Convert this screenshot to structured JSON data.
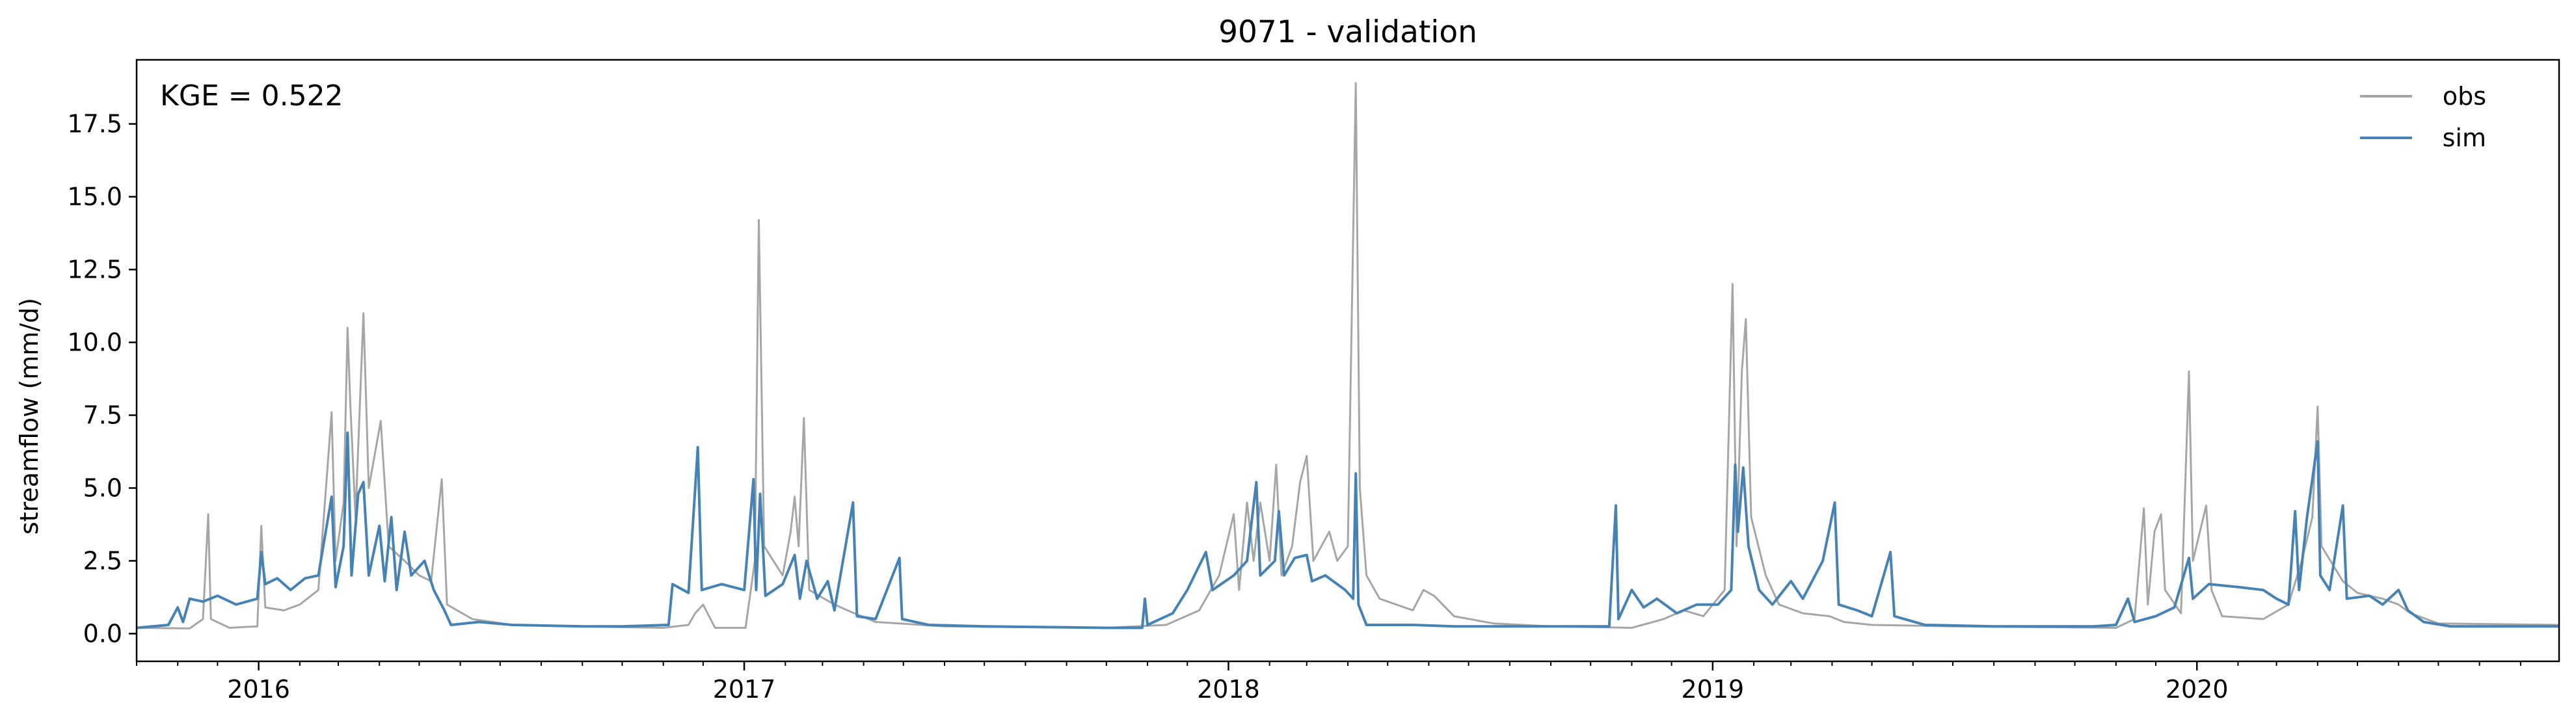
{
  "chart_data": {
    "type": "line",
    "title": "9071 - validation",
    "xlabel": "",
    "ylabel": "streamflow (mm/d)",
    "annotation": "KGE = 0.522",
    "xlim": [
      "2015-10-01",
      "2020-09-30"
    ],
    "ylim": [
      -0.95,
      19.7
    ],
    "yticks": [
      0.0,
      2.5,
      5.0,
      7.5,
      10.0,
      12.5,
      15.0,
      17.5
    ],
    "ytick_labels": [
      "0.0",
      "2.5",
      "5.0",
      "7.5",
      "10.0",
      "12.5",
      "15.0",
      "17.5"
    ],
    "xticks": [
      "2016-01-01",
      "2017-01-01",
      "2018-01-01",
      "2019-01-01",
      "2020-01-01"
    ],
    "xtick_labels": [
      "2016",
      "2017",
      "2018",
      "2019",
      "2020"
    ],
    "grid": false,
    "legend_position": "top-right",
    "series": [
      {
        "name": "obs",
        "color": "#a6a6a6",
        "points": [
          [
            "2015-10-01",
            0.2
          ],
          [
            "2015-11-10",
            0.18
          ],
          [
            "2015-11-20",
            0.5
          ],
          [
            "2015-11-24",
            4.1
          ],
          [
            "2015-11-26",
            0.5
          ],
          [
            "2015-12-10",
            0.2
          ],
          [
            "2015-12-31",
            0.25
          ],
          [
            "2016-01-03",
            3.7
          ],
          [
            "2016-01-06",
            0.9
          ],
          [
            "2016-01-20",
            0.8
          ],
          [
            "2016-02-01",
            1.0
          ],
          [
            "2016-02-15",
            1.5
          ],
          [
            "2016-02-25",
            7.6
          ],
          [
            "2016-02-28",
            2.5
          ],
          [
            "2016-03-05",
            4.5
          ],
          [
            "2016-03-08",
            10.5
          ],
          [
            "2016-03-10",
            8.0
          ],
          [
            "2016-03-14",
            4.0
          ],
          [
            "2016-03-20",
            11.0
          ],
          [
            "2016-03-24",
            5.0
          ],
          [
            "2016-04-02",
            7.3
          ],
          [
            "2016-04-08",
            3.0
          ],
          [
            "2016-04-20",
            2.5
          ],
          [
            "2016-05-01",
            2.0
          ],
          [
            "2016-05-10",
            1.8
          ],
          [
            "2016-05-18",
            5.3
          ],
          [
            "2016-05-22",
            1.0
          ],
          [
            "2016-06-10",
            0.5
          ],
          [
            "2016-07-10",
            0.3
          ],
          [
            "2016-09-01",
            0.25
          ],
          [
            "2016-11-01",
            0.2
          ],
          [
            "2016-11-20",
            0.3
          ],
          [
            "2016-11-25",
            0.7
          ],
          [
            "2016-12-01",
            1.0
          ],
          [
            "2016-12-10",
            0.2
          ],
          [
            "2017-01-02",
            0.2
          ],
          [
            "2017-01-09",
            2.5
          ],
          [
            "2017-01-12",
            14.2
          ],
          [
            "2017-01-16",
            3.0
          ],
          [
            "2017-01-30",
            2.0
          ],
          [
            "2017-02-05",
            3.5
          ],
          [
            "2017-02-08",
            4.7
          ],
          [
            "2017-02-11",
            3.0
          ],
          [
            "2017-02-15",
            7.4
          ],
          [
            "2017-02-19",
            1.5
          ],
          [
            "2017-03-10",
            1.0
          ],
          [
            "2017-03-25",
            0.7
          ],
          [
            "2017-04-10",
            0.4
          ],
          [
            "2017-06-01",
            0.25
          ],
          [
            "2017-10-01",
            0.2
          ],
          [
            "2017-11-15",
            0.3
          ],
          [
            "2017-12-10",
            0.8
          ],
          [
            "2017-12-25",
            2.0
          ],
          [
            "2018-01-05",
            4.1
          ],
          [
            "2018-01-09",
            1.5
          ],
          [
            "2018-01-15",
            4.5
          ],
          [
            "2018-01-20",
            2.5
          ],
          [
            "2018-01-25",
            4.5
          ],
          [
            "2018-02-01",
            2.5
          ],
          [
            "2018-02-06",
            5.8
          ],
          [
            "2018-02-10",
            2.0
          ],
          [
            "2018-02-18",
            3.0
          ],
          [
            "2018-02-24",
            5.2
          ],
          [
            "2018-03-01",
            6.1
          ],
          [
            "2018-03-06",
            2.5
          ],
          [
            "2018-03-18",
            3.5
          ],
          [
            "2018-03-24",
            2.5
          ],
          [
            "2018-04-01",
            3.0
          ],
          [
            "2018-04-07",
            18.9
          ],
          [
            "2018-04-10",
            5.0
          ],
          [
            "2018-04-15",
            2.0
          ],
          [
            "2018-04-25",
            1.2
          ],
          [
            "2018-05-20",
            0.8
          ],
          [
            "2018-05-28",
            1.5
          ],
          [
            "2018-06-05",
            1.3
          ],
          [
            "2018-06-20",
            0.6
          ],
          [
            "2018-07-20",
            0.35
          ],
          [
            "2018-09-01",
            0.25
          ],
          [
            "2018-11-01",
            0.2
          ],
          [
            "2018-11-25",
            0.5
          ],
          [
            "2018-12-10",
            0.8
          ],
          [
            "2018-12-25",
            0.6
          ],
          [
            "2019-01-10",
            1.5
          ],
          [
            "2019-01-16",
            12.0
          ],
          [
            "2019-01-19",
            3.0
          ],
          [
            "2019-01-23",
            9.0
          ],
          [
            "2019-01-26",
            10.8
          ],
          [
            "2019-01-30",
            4.0
          ],
          [
            "2019-02-10",
            2.0
          ],
          [
            "2019-02-20",
            1.0
          ],
          [
            "2019-03-10",
            0.7
          ],
          [
            "2019-03-30",
            0.6
          ],
          [
            "2019-04-10",
            0.4
          ],
          [
            "2019-05-01",
            0.3
          ],
          [
            "2019-07-01",
            0.25
          ],
          [
            "2019-11-01",
            0.2
          ],
          [
            "2019-11-15",
            0.5
          ],
          [
            "2019-11-22",
            4.3
          ],
          [
            "2019-11-25",
            1.0
          ],
          [
            "2019-11-30",
            3.5
          ],
          [
            "2019-12-05",
            4.1
          ],
          [
            "2019-12-08",
            1.5
          ],
          [
            "2019-12-20",
            0.7
          ],
          [
            "2019-12-26",
            9.0
          ],
          [
            "2019-12-29",
            2.5
          ],
          [
            "2020-01-08",
            4.4
          ],
          [
            "2020-01-12",
            1.5
          ],
          [
            "2020-01-20",
            0.6
          ],
          [
            "2020-02-20",
            0.5
          ],
          [
            "2020-03-10",
            1.0
          ],
          [
            "2020-03-20",
            2.5
          ],
          [
            "2020-03-28",
            4.0
          ],
          [
            "2020-04-01",
            7.8
          ],
          [
            "2020-04-04",
            3.0
          ],
          [
            "2020-04-20",
            1.8
          ],
          [
            "2020-05-01",
            1.4
          ],
          [
            "2020-05-20",
            1.2
          ],
          [
            "2020-06-01",
            1.0
          ],
          [
            "2020-06-10",
            0.7
          ],
          [
            "2020-07-01",
            0.35
          ],
          [
            "2020-09-30",
            0.3
          ]
        ]
      },
      {
        "name": "sim",
        "color": "#4682b4",
        "points": [
          [
            "2015-10-01",
            0.2
          ],
          [
            "2015-10-25",
            0.3
          ],
          [
            "2015-11-01",
            0.9
          ],
          [
            "2015-11-05",
            0.4
          ],
          [
            "2015-11-10",
            1.2
          ],
          [
            "2015-11-20",
            1.1
          ],
          [
            "2015-12-01",
            1.3
          ],
          [
            "2015-12-15",
            1.0
          ],
          [
            "2015-12-31",
            1.2
          ],
          [
            "2016-01-03",
            2.8
          ],
          [
            "2016-01-06",
            1.7
          ],
          [
            "2016-01-15",
            1.9
          ],
          [
            "2016-01-25",
            1.5
          ],
          [
            "2016-02-05",
            1.9
          ],
          [
            "2016-02-15",
            2.0
          ],
          [
            "2016-02-25",
            4.7
          ],
          [
            "2016-02-28",
            1.6
          ],
          [
            "2016-03-05",
            3.0
          ],
          [
            "2016-03-08",
            6.9
          ],
          [
            "2016-03-11",
            2.0
          ],
          [
            "2016-03-16",
            4.8
          ],
          [
            "2016-03-20",
            5.2
          ],
          [
            "2016-03-24",
            2.0
          ],
          [
            "2016-04-01",
            3.7
          ],
          [
            "2016-04-05",
            1.8
          ],
          [
            "2016-04-10",
            4.0
          ],
          [
            "2016-04-14",
            1.5
          ],
          [
            "2016-04-20",
            3.5
          ],
          [
            "2016-04-25",
            2.0
          ],
          [
            "2016-05-05",
            2.5
          ],
          [
            "2016-05-12",
            1.5
          ],
          [
            "2016-05-20",
            0.8
          ],
          [
            "2016-05-25",
            0.3
          ],
          [
            "2016-06-15",
            0.4
          ],
          [
            "2016-07-10",
            0.3
          ],
          [
            "2016-09-01",
            0.25
          ],
          [
            "2016-10-01",
            0.25
          ],
          [
            "2016-11-05",
            0.3
          ],
          [
            "2016-11-08",
            1.7
          ],
          [
            "2016-11-20",
            1.4
          ],
          [
            "2016-11-27",
            6.4
          ],
          [
            "2016-11-30",
            1.5
          ],
          [
            "2016-12-15",
            1.7
          ],
          [
            "2017-01-01",
            1.5
          ],
          [
            "2017-01-08",
            5.3
          ],
          [
            "2017-01-10",
            1.5
          ],
          [
            "2017-01-13",
            4.8
          ],
          [
            "2017-01-17",
            1.3
          ],
          [
            "2017-01-30",
            1.7
          ],
          [
            "2017-02-08",
            2.7
          ],
          [
            "2017-02-12",
            1.2
          ],
          [
            "2017-02-17",
            2.5
          ],
          [
            "2017-02-25",
            1.2
          ],
          [
            "2017-03-05",
            1.8
          ],
          [
            "2017-03-10",
            0.8
          ],
          [
            "2017-03-24",
            4.5
          ],
          [
            "2017-03-27",
            0.6
          ],
          [
            "2017-04-10",
            0.5
          ],
          [
            "2017-04-28",
            2.6
          ],
          [
            "2017-04-30",
            0.5
          ],
          [
            "2017-05-20",
            0.3
          ],
          [
            "2017-07-01",
            0.25
          ],
          [
            "2017-10-01",
            0.2
          ],
          [
            "2017-10-28",
            0.2
          ],
          [
            "2017-10-30",
            1.2
          ],
          [
            "2017-11-01",
            0.3
          ],
          [
            "2017-11-20",
            0.7
          ],
          [
            "2017-12-01",
            1.5
          ],
          [
            "2017-12-15",
            2.8
          ],
          [
            "2017-12-20",
            1.5
          ],
          [
            "2018-01-05",
            2.0
          ],
          [
            "2018-01-15",
            2.5
          ],
          [
            "2018-01-22",
            5.2
          ],
          [
            "2018-01-25",
            2.0
          ],
          [
            "2018-02-05",
            2.5
          ],
          [
            "2018-02-08",
            4.2
          ],
          [
            "2018-02-12",
            2.0
          ],
          [
            "2018-02-20",
            2.6
          ],
          [
            "2018-03-01",
            2.7
          ],
          [
            "2018-03-05",
            1.8
          ],
          [
            "2018-03-15",
            2.0
          ],
          [
            "2018-03-30",
            1.5
          ],
          [
            "2018-04-05",
            1.2
          ],
          [
            "2018-04-07",
            5.5
          ],
          [
            "2018-04-09",
            1.0
          ],
          [
            "2018-04-15",
            0.3
          ],
          [
            "2018-05-20",
            0.3
          ],
          [
            "2018-06-20",
            0.25
          ],
          [
            "2018-09-01",
            0.25
          ],
          [
            "2018-10-15",
            0.25
          ],
          [
            "2018-10-20",
            4.4
          ],
          [
            "2018-10-22",
            0.5
          ],
          [
            "2018-11-01",
            1.5
          ],
          [
            "2018-11-10",
            0.9
          ],
          [
            "2018-11-20",
            1.2
          ],
          [
            "2018-12-05",
            0.7
          ],
          [
            "2018-12-20",
            1.0
          ],
          [
            "2019-01-05",
            1.0
          ],
          [
            "2019-01-15",
            1.5
          ],
          [
            "2019-01-18",
            5.8
          ],
          [
            "2019-01-20",
            3.5
          ],
          [
            "2019-01-24",
            5.7
          ],
          [
            "2019-01-28",
            3.0
          ],
          [
            "2019-02-05",
            1.5
          ],
          [
            "2019-02-15",
            1.0
          ],
          [
            "2019-03-01",
            1.8
          ],
          [
            "2019-03-10",
            1.2
          ],
          [
            "2019-03-25",
            2.5
          ],
          [
            "2019-04-03",
            4.5
          ],
          [
            "2019-04-06",
            1.0
          ],
          [
            "2019-04-20",
            0.8
          ],
          [
            "2019-05-01",
            0.6
          ],
          [
            "2019-05-15",
            2.8
          ],
          [
            "2019-05-18",
            0.6
          ],
          [
            "2019-06-10",
            0.3
          ],
          [
            "2019-08-01",
            0.25
          ],
          [
            "2019-10-15",
            0.25
          ],
          [
            "2019-11-01",
            0.3
          ],
          [
            "2019-11-10",
            1.2
          ],
          [
            "2019-11-15",
            0.4
          ],
          [
            "2019-12-01",
            0.6
          ],
          [
            "2019-12-15",
            0.9
          ],
          [
            "2019-12-26",
            2.6
          ],
          [
            "2019-12-29",
            1.2
          ],
          [
            "2020-01-10",
            1.7
          ],
          [
            "2020-02-01",
            1.6
          ],
          [
            "2020-02-20",
            1.5
          ],
          [
            "2020-03-01",
            1.2
          ],
          [
            "2020-03-10",
            1.0
          ],
          [
            "2020-03-15",
            4.2
          ],
          [
            "2020-03-18",
            1.5
          ],
          [
            "2020-03-24",
            4.0
          ],
          [
            "2020-04-01",
            6.6
          ],
          [
            "2020-04-03",
            2.0
          ],
          [
            "2020-04-10",
            1.5
          ],
          [
            "2020-04-20",
            4.4
          ],
          [
            "2020-04-23",
            1.2
          ],
          [
            "2020-05-10",
            1.3
          ],
          [
            "2020-05-20",
            1.0
          ],
          [
            "2020-06-01",
            1.5
          ],
          [
            "2020-06-08",
            0.8
          ],
          [
            "2020-06-20",
            0.4
          ],
          [
            "2020-07-10",
            0.25
          ],
          [
            "2020-09-30",
            0.25
          ]
        ]
      }
    ]
  }
}
